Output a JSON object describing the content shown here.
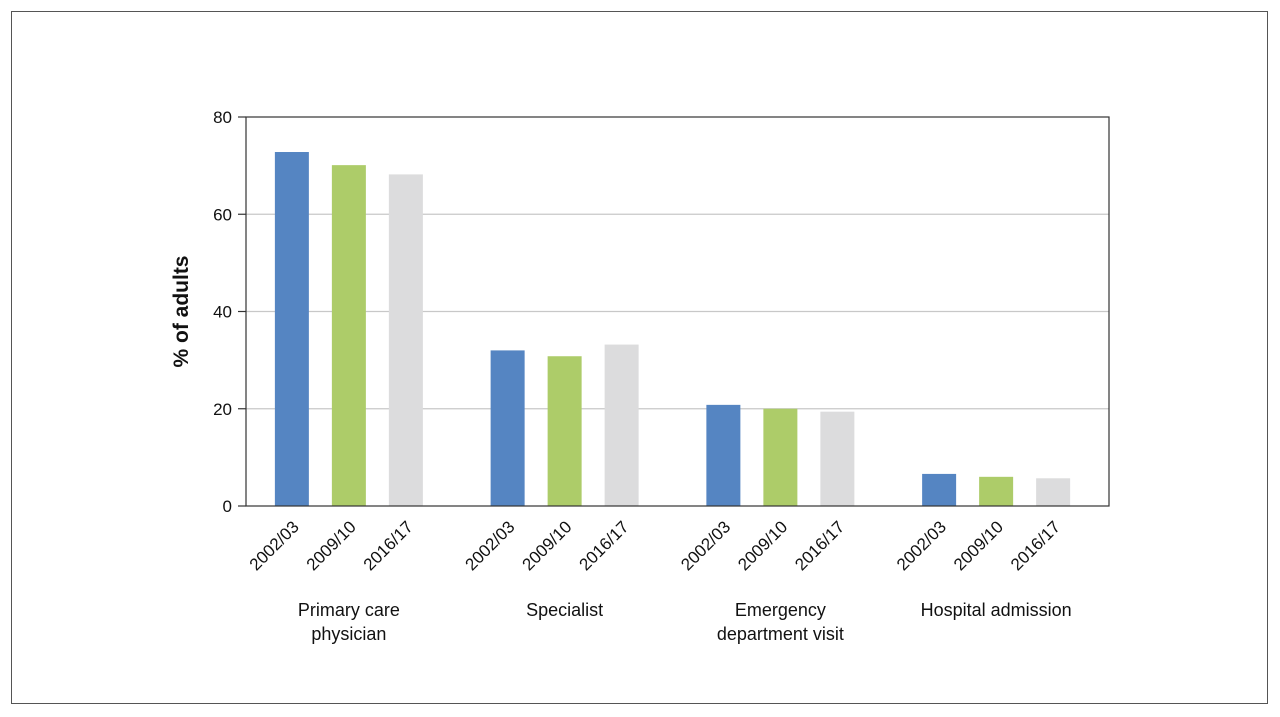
{
  "chart_data": {
    "type": "bar",
    "title": "",
    "xlabel": "",
    "ylabel": "% of adults",
    "ylim": [
      0,
      80
    ],
    "yticks": [
      0,
      20,
      40,
      60,
      80
    ],
    "grid": true,
    "legend": "none",
    "groups": [
      {
        "label_lines": [
          "Primary care",
          "physician"
        ],
        "bars": [
          {
            "label": "2002/03",
            "value": 72.8
          },
          {
            "label": "2009/10",
            "value": 70.1
          },
          {
            "label": "2016/17",
            "value": 68.2
          }
        ]
      },
      {
        "label_lines": [
          "Specialist"
        ],
        "bars": [
          {
            "label": "2002/03",
            "value": 32.0
          },
          {
            "label": "2009/10",
            "value": 30.8
          },
          {
            "label": "2016/17",
            "value": 33.2
          }
        ]
      },
      {
        "label_lines": [
          "Emergency",
          "department visit"
        ],
        "bars": [
          {
            "label": "2002/03",
            "value": 20.8
          },
          {
            "label": "2009/10",
            "value": 20.0
          },
          {
            "label": "2016/17",
            "value": 19.4
          }
        ]
      },
      {
        "label_lines": [
          "Hospital admission"
        ],
        "bars": [
          {
            "label": "2002/03",
            "value": 6.6
          },
          {
            "label": "2009/10",
            "value": 6.0
          },
          {
            "label": "2016/17",
            "value": 5.7
          }
        ]
      }
    ],
    "series_colors": {
      "2002/03": "#5585c2",
      "2009/10": "#adcc69",
      "2016/17": "#dcdcdd"
    },
    "gridline_color": "#c8c8c8",
    "axis_color": "#333333"
  }
}
